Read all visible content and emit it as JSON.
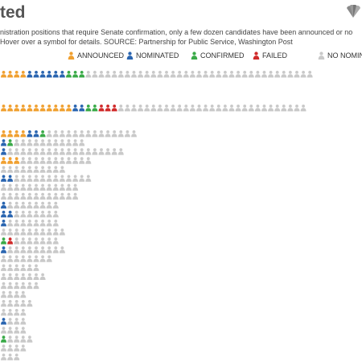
{
  "page": {
    "title": "ted",
    "subtitle_lines": [
      "nistration positions that require Senate confirmation, only a few dozen candidates have been announced or no",
      "Hover over a symbol for details. SOURCE: Partnership for Public Service, Washington Post"
    ],
    "logo_icon": "peacock-logo-icon"
  },
  "legend": [
    {
      "key": "announced",
      "label": "ANNOUNCED",
      "color": "#f0a030"
    },
    {
      "key": "nominated",
      "label": "NOMINATED",
      "color": "#2a65b0"
    },
    {
      "key": "confirmed",
      "label": "CONFIRMED",
      "color": "#3aaa48"
    },
    {
      "key": "failed",
      "label": "FAILED",
      "color": "#d02a2a"
    },
    {
      "key": "none",
      "label": "NO NOMINI",
      "color": "#c9c9c9"
    }
  ],
  "chart_data": {
    "type": "unit",
    "icon": "person-icon",
    "rows": [
      {
        "total": 48,
        "announced": 4,
        "nominated": 6,
        "confirmed": 3,
        "failed": 0
      },
      {
        "total": 47,
        "announced": 11,
        "nominated": 2,
        "confirmed": 2,
        "failed": 3
      },
      {
        "total": 21,
        "announced": 4,
        "nominated": 2,
        "confirmed": 1,
        "failed": 0
      },
      {
        "total": 13,
        "announced": 0,
        "nominated": 1,
        "confirmed": 1,
        "failed": 0
      },
      {
        "total": 19,
        "announced": 0,
        "nominated": 1,
        "confirmed": 0,
        "failed": 0
      },
      {
        "total": 14,
        "announced": 3,
        "nominated": 0,
        "confirmed": 0,
        "failed": 0
      },
      {
        "total": 10,
        "announced": 0,
        "nominated": 0,
        "confirmed": 0,
        "failed": 0
      },
      {
        "total": 14,
        "announced": 0,
        "nominated": 2,
        "confirmed": 0,
        "failed": 0
      },
      {
        "total": 12,
        "announced": 0,
        "nominated": 0,
        "confirmed": 0,
        "failed": 0
      },
      {
        "total": 12,
        "announced": 0,
        "nominated": 0,
        "confirmed": 0,
        "failed": 0
      },
      {
        "total": 9,
        "announced": 0,
        "nominated": 1,
        "confirmed": 0,
        "failed": 0
      },
      {
        "total": 9,
        "announced": 0,
        "nominated": 2,
        "confirmed": 0,
        "failed": 0
      },
      {
        "total": 9,
        "announced": 0,
        "nominated": 1,
        "confirmed": 0,
        "failed": 0
      },
      {
        "total": 10,
        "announced": 0,
        "nominated": 0,
        "confirmed": 0,
        "failed": 0
      },
      {
        "total": 9,
        "announced": 0,
        "nominated": 0,
        "confirmed": 1,
        "failed": 1
      },
      {
        "total": 10,
        "announced": 0,
        "nominated": 1,
        "confirmed": 0,
        "failed": 0
      },
      {
        "total": 8,
        "announced": 0,
        "nominated": 0,
        "confirmed": 0,
        "failed": 0
      },
      {
        "total": 6,
        "announced": 0,
        "nominated": 0,
        "confirmed": 0,
        "failed": 0
      },
      {
        "total": 7,
        "announced": 0,
        "nominated": 0,
        "confirmed": 0,
        "failed": 0
      },
      {
        "total": 6,
        "announced": 0,
        "nominated": 0,
        "confirmed": 0,
        "failed": 0
      },
      {
        "total": 4,
        "announced": 0,
        "nominated": 0,
        "confirmed": 0,
        "failed": 0
      },
      {
        "total": 5,
        "announced": 0,
        "nominated": 0,
        "confirmed": 0,
        "failed": 0
      },
      {
        "total": 4,
        "announced": 0,
        "nominated": 0,
        "confirmed": 0,
        "failed": 0
      },
      {
        "total": 4,
        "announced": 0,
        "nominated": 1,
        "confirmed": 0,
        "failed": 0
      },
      {
        "total": 4,
        "announced": 0,
        "nominated": 0,
        "confirmed": 0,
        "failed": 0
      },
      {
        "total": 5,
        "announced": 0,
        "nominated": 0,
        "confirmed": 1,
        "failed": 0
      },
      {
        "total": 4,
        "announced": 0,
        "nominated": 0,
        "confirmed": 0,
        "failed": 0
      },
      {
        "total": 3,
        "announced": 0,
        "nominated": 0,
        "confirmed": 0,
        "failed": 0
      },
      {
        "total": 2,
        "announced": 0,
        "nominated": 0,
        "confirmed": 0,
        "failed": 0
      }
    ]
  }
}
